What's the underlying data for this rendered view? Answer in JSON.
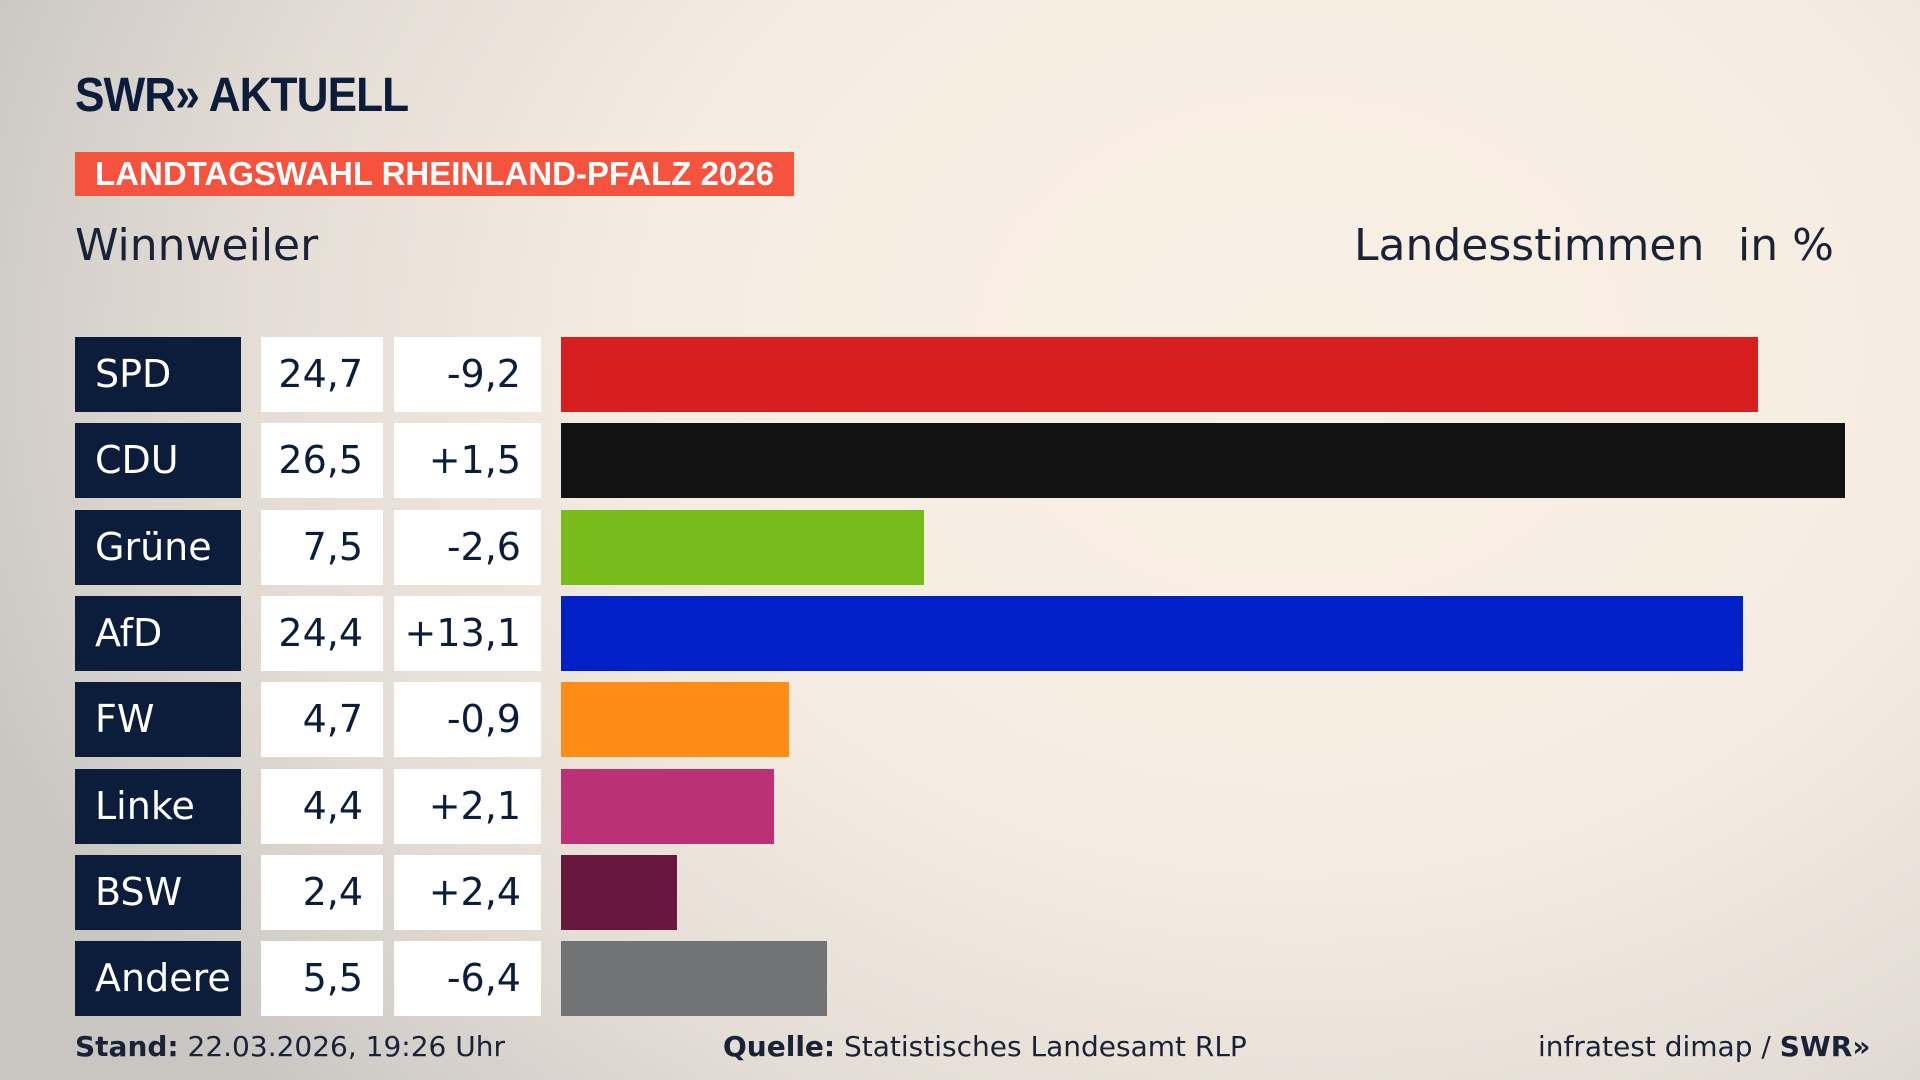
{
  "header": {
    "logo": "SWR» AKTUELL",
    "badge": "LANDTAGSWAHL RHEINLAND-PFALZ 2026",
    "region": "Winnweiler",
    "measure": "Landesstimmen",
    "unit": "in %"
  },
  "chart_data": {
    "type": "bar",
    "orientation": "horizontal",
    "categories": [
      "SPD",
      "CDU",
      "Grüne",
      "AfD",
      "FW",
      "Linke",
      "BSW",
      "Andere"
    ],
    "values": [
      24.7,
      26.5,
      7.5,
      24.4,
      4.7,
      4.4,
      2.4,
      5.5
    ],
    "values_label": [
      "24,7",
      "26,5",
      "7,5",
      "24,4",
      "4,7",
      "4,4",
      "2,4",
      "5,5"
    ],
    "change_label": [
      "-9,2",
      "+1,5",
      "-2,6",
      "+13,1",
      "-0,9",
      "+2,1",
      "+2,4",
      "-6,4"
    ],
    "colors": [
      "#d81f20",
      "#121212",
      "#78bc1c",
      "#0021c8",
      "#ff8c17",
      "#bc3075",
      "#68173f",
      "#727374"
    ],
    "xlim": [
      0,
      26.5
    ]
  },
  "footer": {
    "stand_label": "Stand:",
    "stand_value": "22.03.2026, 19:26 Uhr",
    "source_label": "Quelle:",
    "source_value": "Statistisches Landesamt RLP",
    "credit": "infratest dimap / ",
    "credit_logo": "SWR»"
  }
}
